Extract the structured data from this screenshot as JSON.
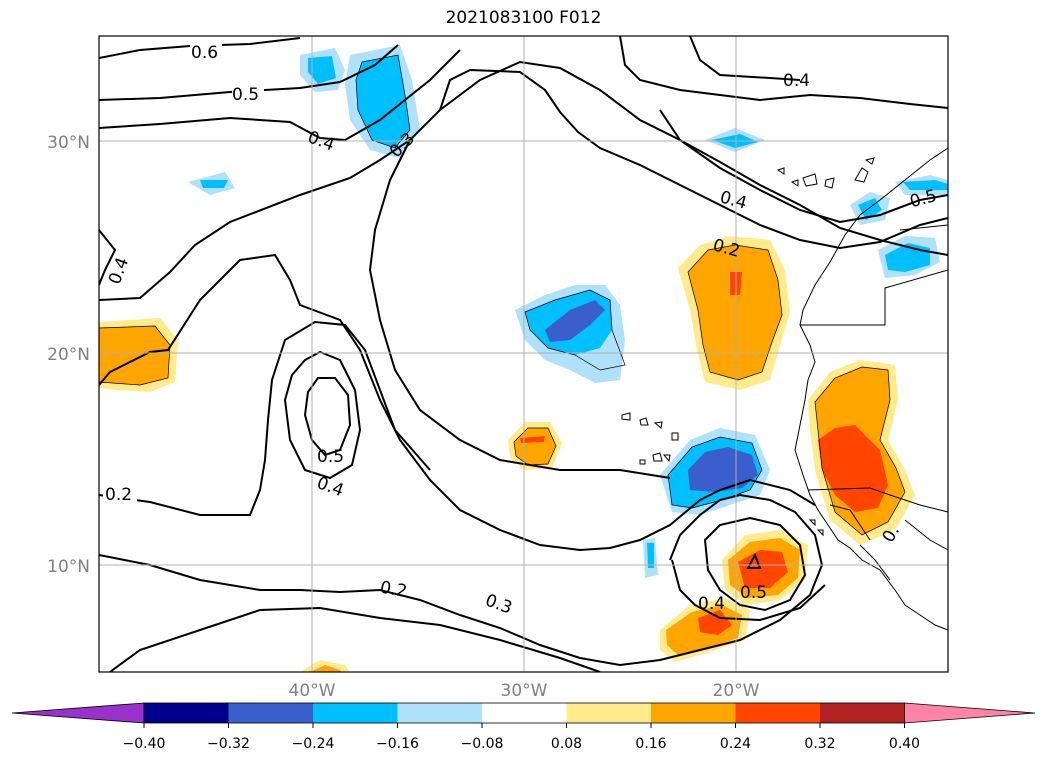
{
  "title": "2021083100 F012",
  "map": {
    "lat_labels": [
      "30°N",
      "20°N",
      "10°N"
    ],
    "lon_labels": [
      "40°W",
      "30°W",
      "20°W"
    ],
    "contour_labels": [
      "0.6",
      "0.5",
      "0.4",
      "0.3",
      "0.4",
      "0.4",
      "0.5",
      "0.4",
      "0.2",
      "0.5",
      "0.4",
      "0.2",
      "0.2",
      "0.3",
      "0.4",
      "0.5",
      "0."
    ],
    "colors": {
      "neg_040": "#00008b",
      "neg_032": "#3a5fcd",
      "neg_024": "#00bfff",
      "neg_016": "#afe1fa",
      "pos_016": "#ffeb8c",
      "pos_024": "#ffa500",
      "pos_032": "#ff4500",
      "pos_040": "#b22222"
    }
  },
  "colorbar": {
    "labels": [
      "−0.40",
      "−0.32",
      "−0.24",
      "−0.16",
      "−0.08",
      "0.08",
      "0.16",
      "0.24",
      "0.32",
      "0.40"
    ],
    "colors": [
      "#9932cc",
      "#00008b",
      "#3a5fcd",
      "#00bfff",
      "#afe1fa",
      "#ffffff",
      "#ffeb8c",
      "#ffa500",
      "#ff4500",
      "#b22222",
      "#ff82ab"
    ]
  }
}
